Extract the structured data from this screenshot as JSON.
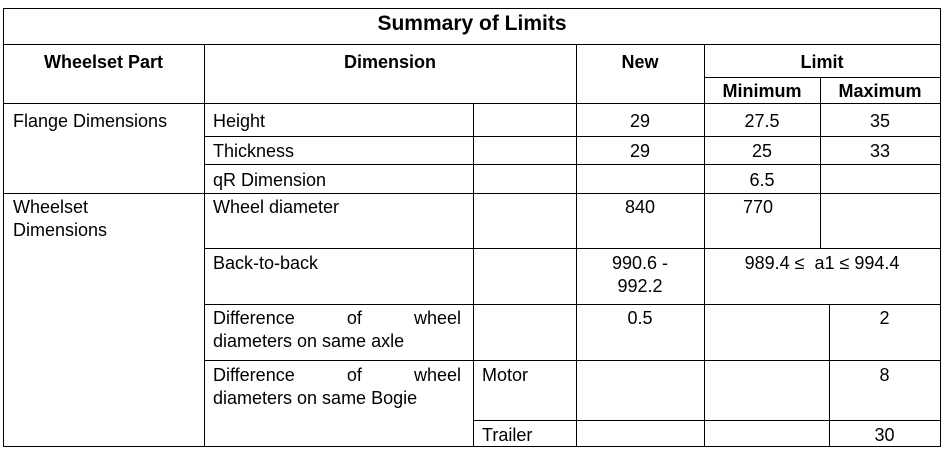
{
  "title": "Summary of Limits",
  "headers": {
    "part": "Wheelset Part",
    "dimension": "Dimension",
    "new": "New",
    "limit": "Limit",
    "minimum": "Minimum",
    "maximum": "Maximum"
  },
  "flange": {
    "part": "Flange Dimensions",
    "height": {
      "label": "Height",
      "new": "29",
      "min": "27.5",
      "max": "35"
    },
    "thickness": {
      "label": "Thickness",
      "new": "29",
      "min": "25",
      "max": "33"
    },
    "qr": {
      "label": "qR Dimension",
      "min": "6.5"
    }
  },
  "wheelset": {
    "part_line1": "Wheelset",
    "part_line2": "Dimensions",
    "diameter": {
      "label": "Wheel diameter",
      "new": "840",
      "min": "770"
    },
    "back_to_back": {
      "label": "Back-to-back",
      "new_line1": "990.6 -",
      "new_line2": "992.2",
      "limit": "989.4 ≤  a1 ≤ 994.4"
    },
    "diff_axle": {
      "label_line1": "Difference of wheel",
      "label_line2": "diameters on same axle",
      "new": "0.5",
      "max": "2"
    },
    "diff_bogie": {
      "label_line1": "Difference of wheel",
      "label_line2": "diameters on same Bogie",
      "motor": {
        "label": "Motor",
        "max": "8"
      },
      "trailer": {
        "label": "Trailer",
        "max": "30"
      }
    }
  }
}
